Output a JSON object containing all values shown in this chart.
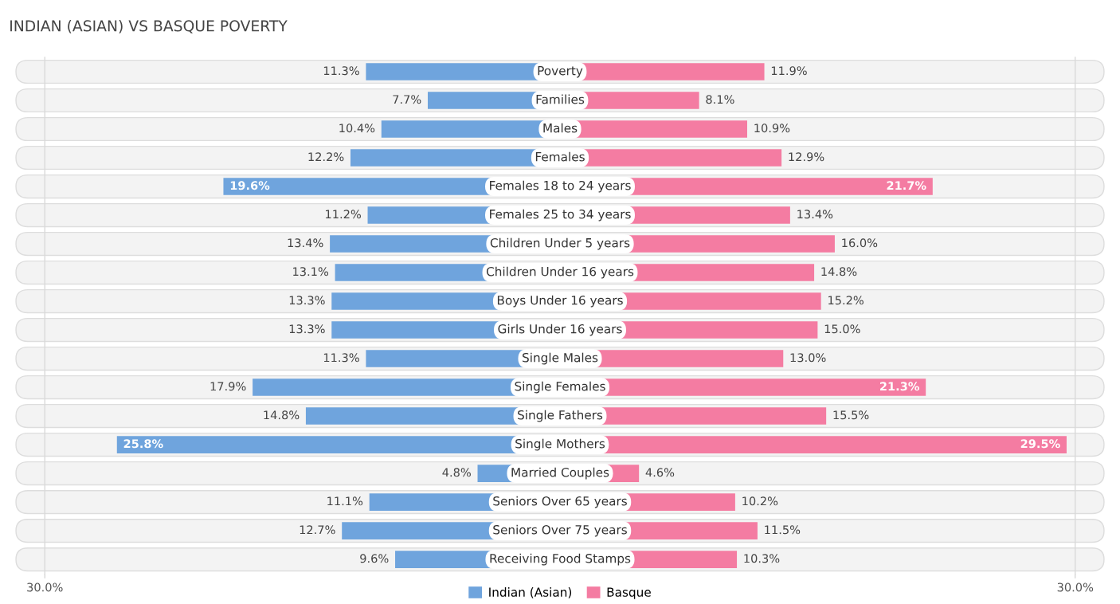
{
  "chart_data": [
    {
      "type": "bar",
      "orientation": "horizontal",
      "title": "INDIAN (ASIAN) VS BASQUE POVERTY",
      "categories": [
        "Poverty",
        "Families",
        "Males",
        "Females",
        "Females 18 to 24 years",
        "Females 25 to 34 years",
        "Children Under 5 years",
        "Children Under 16 years",
        "Boys Under 16 years",
        "Girls Under 16 years",
        "Single Males",
        "Single Females",
        "Single Fathers",
        "Single Mothers",
        "Married Couples",
        "Seniors Over 65 years",
        "Seniors Over 75 years",
        "Receiving Food Stamps"
      ],
      "series": [
        {
          "name": "Indian (Asian)",
          "color": "#6fa4dd",
          "values": [
            11.3,
            7.7,
            10.4,
            12.2,
            19.6,
            11.2,
            13.4,
            13.1,
            13.3,
            13.3,
            11.3,
            17.9,
            14.8,
            25.8,
            4.8,
            11.1,
            12.7,
            9.6
          ],
          "value_labels": [
            "11.3%",
            "7.7%",
            "10.4%",
            "12.2%",
            "19.6%",
            "11.2%",
            "13.4%",
            "13.1%",
            "13.3%",
            "13.3%",
            "11.3%",
            "17.9%",
            "14.8%",
            "25.8%",
            "4.8%",
            "11.1%",
            "12.7%",
            "9.6%"
          ]
        }
      ],
      "xlim": [
        30,
        0
      ],
      "xticks": [
        {
          "value": 30,
          "label": "30.0%"
        }
      ],
      "tick_labels": "x",
      "legend": "bottom"
    },
    {
      "type": "bar",
      "orientation": "horizontal",
      "categories": [
        null,
        null,
        null,
        null,
        null,
        null,
        null,
        null,
        null,
        null,
        null,
        null,
        null,
        null,
        null,
        null,
        null,
        null
      ],
      "series": [
        {
          "name": "Basque",
          "color": "#f47ca2",
          "values": [
            11.9,
            8.1,
            10.9,
            12.9,
            21.7,
            13.4,
            16.0,
            14.8,
            15.2,
            15.0,
            13.0,
            21.3,
            15.5,
            29.5,
            4.6,
            10.2,
            11.5,
            10.3
          ],
          "value_labels": [
            "11.9%",
            "8.1%",
            "10.9%",
            "12.9%",
            "21.7%",
            "13.4%",
            "16.0%",
            "14.8%",
            "15.2%",
            "15.0%",
            "13.0%",
            "21.3%",
            "15.5%",
            "29.5%",
            "4.6%",
            "10.2%",
            "11.5%",
            "10.3%"
          ]
        }
      ],
      "xlim": [
        0,
        30
      ],
      "xticks": [
        {
          "value": 30,
          "label": "30.0%"
        }
      ],
      "tick_labels": "x",
      "legend": "bottom"
    }
  ]
}
